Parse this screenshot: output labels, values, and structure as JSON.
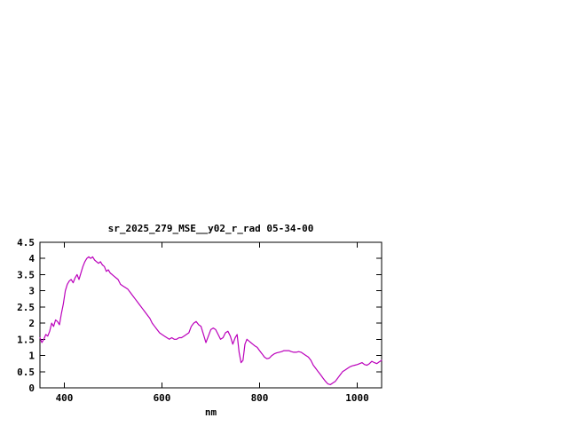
{
  "chart_data": {
    "type": "line",
    "title": "sr_2025_279_MSE__y02_r_rad 05-34-00",
    "xlabel": "nm",
    "ylabel": "",
    "xlim": [
      350,
      1050
    ],
    "ylim": [
      0,
      4.5
    ],
    "grid": false,
    "legend": "none",
    "line_color": "#bb00bb",
    "axis_color": "#000000",
    "x_ticks": [
      400,
      600,
      800,
      1000
    ],
    "x_tick_labels": [
      "400",
      "600",
      "800",
      "1000"
    ],
    "y_ticks": [
      0,
      0.5,
      1,
      1.5,
      2,
      2.5,
      3,
      3.5,
      4,
      4.5
    ],
    "y_tick_labels": [
      "0",
      "0.5",
      "1",
      "1.5",
      "2",
      "2.5",
      "3",
      "3.5",
      "4",
      "4.5"
    ],
    "series": [
      {
        "x": [
          350,
          354,
          358,
          362,
          366,
          370,
          374,
          378,
          382,
          386,
          390,
          394,
          398,
          402,
          406,
          410,
          414,
          418,
          422,
          426,
          430,
          434,
          438,
          442,
          446,
          450,
          454,
          458,
          462,
          466,
          470,
          474,
          478,
          482,
          486,
          490,
          494,
          498,
          502,
          506,
          510,
          515,
          520,
          525,
          530,
          535,
          540,
          545,
          550,
          555,
          560,
          565,
          570,
          575,
          580,
          585,
          590,
          595,
          600,
          605,
          610,
          615,
          620,
          625,
          630,
          635,
          640,
          645,
          650,
          655,
          660,
          665,
          670,
          675,
          680,
          685,
          690,
          695,
          700,
          705,
          710,
          715,
          720,
          725,
          730,
          735,
          740,
          745,
          750,
          754,
          758,
          762,
          766,
          770,
          774,
          778,
          782,
          786,
          790,
          795,
          800,
          805,
          810,
          815,
          820,
          825,
          830,
          835,
          840,
          845,
          850,
          855,
          860,
          865,
          870,
          875,
          880,
          885,
          890,
          895,
          900,
          905,
          910,
          915,
          920,
          925,
          930,
          935,
          940,
          945,
          950,
          955,
          960,
          965,
          970,
          975,
          980,
          985,
          990,
          995,
          1000,
          1005,
          1010,
          1015,
          1020,
          1025,
          1030,
          1035,
          1040,
          1045,
          1050
        ],
        "y": [
          1.55,
          1.4,
          1.5,
          1.65,
          1.6,
          1.75,
          2.0,
          1.9,
          2.1,
          2.05,
          1.95,
          2.3,
          2.6,
          3.0,
          3.2,
          3.3,
          3.35,
          3.25,
          3.4,
          3.5,
          3.35,
          3.55,
          3.75,
          3.9,
          4.0,
          4.05,
          4.0,
          4.05,
          3.95,
          3.9,
          3.85,
          3.9,
          3.8,
          3.75,
          3.6,
          3.65,
          3.55,
          3.5,
          3.45,
          3.4,
          3.35,
          3.2,
          3.15,
          3.1,
          3.05,
          2.95,
          2.85,
          2.75,
          2.65,
          2.55,
          2.45,
          2.35,
          2.25,
          2.15,
          2.0,
          1.9,
          1.8,
          1.7,
          1.65,
          1.6,
          1.55,
          1.5,
          1.55,
          1.5,
          1.5,
          1.55,
          1.55,
          1.6,
          1.65,
          1.7,
          1.9,
          2.0,
          2.05,
          1.95,
          1.9,
          1.65,
          1.4,
          1.6,
          1.8,
          1.85,
          1.8,
          1.65,
          1.5,
          1.55,
          1.7,
          1.75,
          1.6,
          1.35,
          1.55,
          1.65,
          1.1,
          0.78,
          0.85,
          1.35,
          1.5,
          1.45,
          1.4,
          1.35,
          1.3,
          1.25,
          1.15,
          1.05,
          0.95,
          0.9,
          0.92,
          1.0,
          1.05,
          1.08,
          1.1,
          1.12,
          1.15,
          1.15,
          1.15,
          1.12,
          1.1,
          1.1,
          1.12,
          1.1,
          1.05,
          1.0,
          0.95,
          0.85,
          0.7,
          0.6,
          0.5,
          0.4,
          0.3,
          0.2,
          0.12,
          0.1,
          0.15,
          0.2,
          0.3,
          0.4,
          0.5,
          0.55,
          0.6,
          0.65,
          0.68,
          0.7,
          0.72,
          0.75,
          0.78,
          0.72,
          0.7,
          0.75,
          0.82,
          0.78,
          0.75,
          0.8,
          0.85
        ]
      }
    ]
  }
}
